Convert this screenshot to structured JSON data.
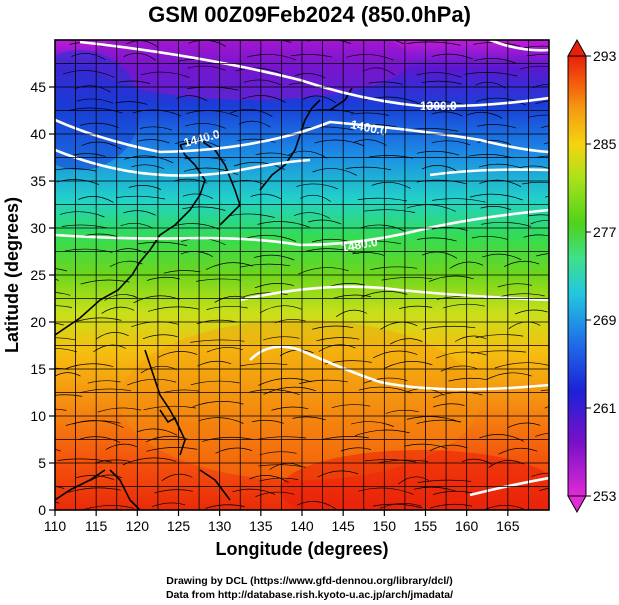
{
  "title": "GSM 00Z09Feb2024 (850.0hPa)",
  "xlabel": "Longitude (degrees)",
  "ylabel": "Latitude  (degrees)",
  "credit_line1": "Drawing by DCL (https://www.gfd-dennou.org/library/dcl/)",
  "credit_line2": "Data from http://database.rish.kyoto-u.ac.jp/arch/jmadata/",
  "chart_data": {
    "type": "heatmap",
    "description_fields": "temperature shading with geopotential height contours and wind streamlines",
    "x_range": [
      110,
      170
    ],
    "y_range": [
      0,
      50
    ],
    "x_ticks": [
      "110",
      "115",
      "120",
      "125",
      "130",
      "135",
      "140",
      "145",
      "150",
      "155",
      "160",
      "165"
    ],
    "y_ticks": [
      "0",
      "5",
      "10",
      "15",
      "20",
      "25",
      "30",
      "35",
      "40",
      "45"
    ],
    "colorbar": {
      "range": [
        253,
        293
      ],
      "ticks": [
        "253",
        "261",
        "269",
        "277",
        "285",
        "293"
      ],
      "colors": [
        "#e02bd6",
        "#7a10c8",
        "#1c22d8",
        "#1f78e8",
        "#23c7e0",
        "#3fe08a",
        "#4fd21a",
        "#a8e21a",
        "#f5d40f",
        "#f59a10",
        "#f45a0c",
        "#e8200a"
      ]
    },
    "contours": [
      {
        "label": "1300.0",
        "lon": 159,
        "lat": 44
      },
      {
        "label": "1400.0",
        "lon": 148,
        "lat": 41.5
      },
      {
        "label": "1440.0",
        "lon": 127.5,
        "lat": 41
      },
      {
        "label": "1480.0",
        "lon": 147,
        "lat": 29
      }
    ]
  }
}
